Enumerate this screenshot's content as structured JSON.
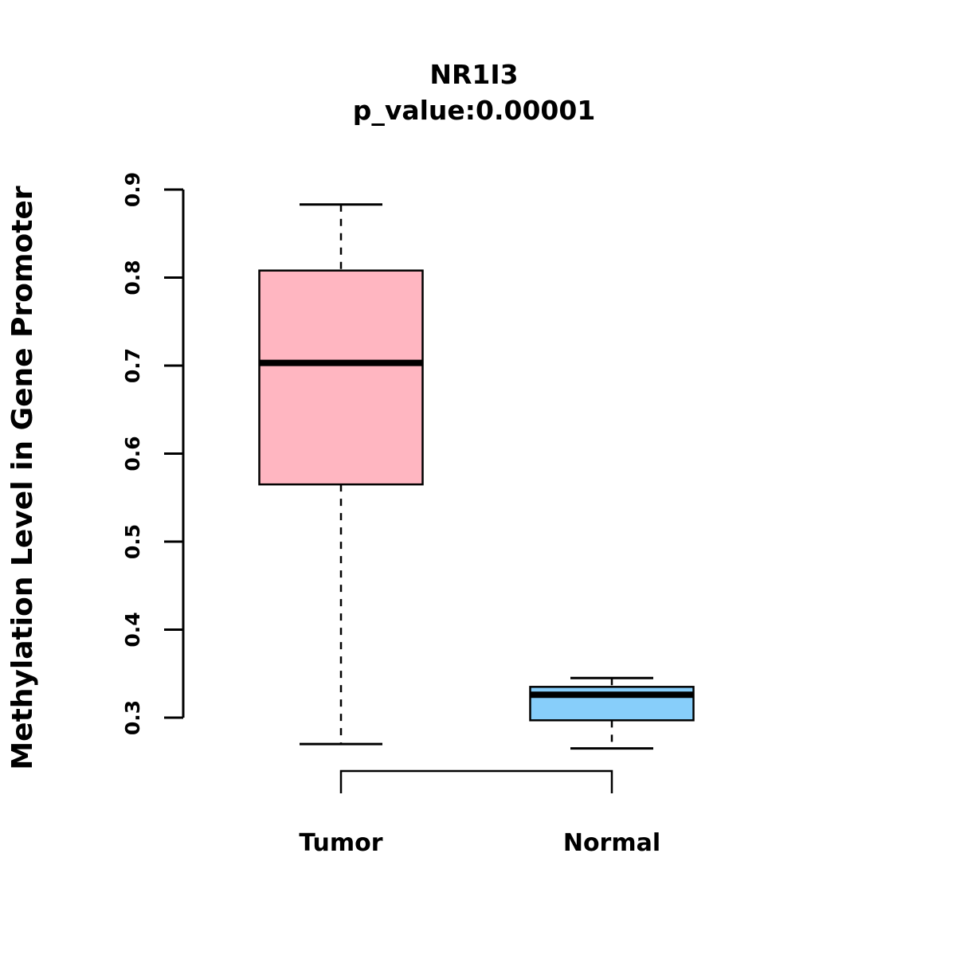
{
  "chart_data": {
    "type": "boxplot",
    "title": "NR1I3",
    "subtitle": "p_value:0.00001",
    "ylabel": "Methylation Level in Gene Promoter",
    "xlabel": "",
    "ylim": [
      0.25,
      0.92
    ],
    "yticks": [
      "0.3",
      "0.4",
      "0.5",
      "0.6",
      "0.7",
      "0.8",
      "0.9"
    ],
    "ytick_values": [
      0.3,
      0.4,
      0.5,
      0.6,
      0.7,
      0.8,
      0.9
    ],
    "grid": false,
    "legend_position": "none",
    "axis_color": "#000000",
    "groups": [
      {
        "label": "Tumor",
        "color": "#FFB6C1",
        "whisker_low": 0.27,
        "q1": 0.565,
        "median": 0.703,
        "q3": 0.808,
        "whisker_high": 0.883
      },
      {
        "label": "Normal",
        "color": "#87CEFA",
        "whisker_low": 0.265,
        "q1": 0.297,
        "median": 0.326,
        "q3": 0.335,
        "whisker_high": 0.345
      }
    ],
    "comparison_bracket": {
      "between": [
        "Tumor",
        "Normal"
      ]
    }
  }
}
